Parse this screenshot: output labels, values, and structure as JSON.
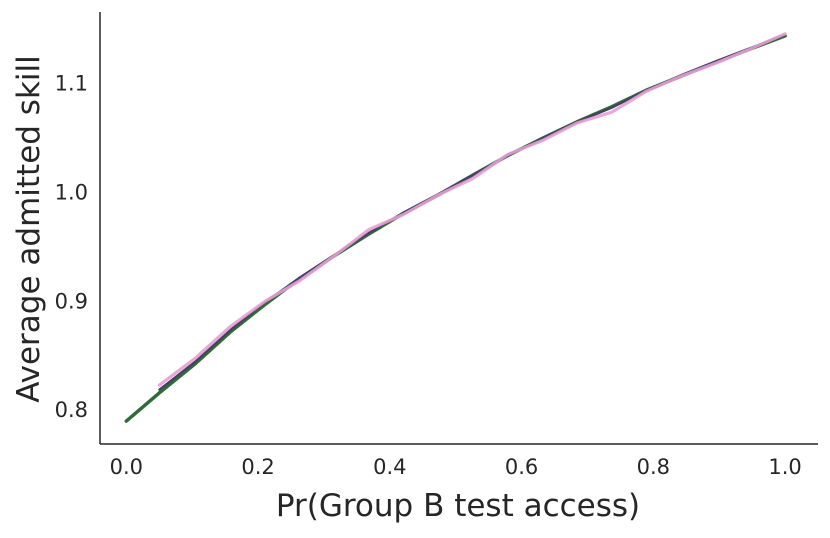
{
  "chart_data": {
    "type": "line",
    "title": "",
    "xlabel": "Pr(Group B test access)",
    "ylabel": "Average admitted skill",
    "xlim": [
      -0.04,
      1.05
    ],
    "ylim": [
      0.768,
      1.165
    ],
    "xticks": [
      0.0,
      0.2,
      0.4,
      0.6,
      0.8,
      1.0
    ],
    "xtick_labels": [
      "0.0",
      "0.2",
      "0.4",
      "0.6",
      "0.8",
      "1.0"
    ],
    "yticks": [
      0.8,
      0.9,
      1.0,
      1.1
    ],
    "ytick_labels": [
      "0.8",
      "0.9",
      "1.0",
      "1.1"
    ],
    "grid": false,
    "legend": "none",
    "series": [
      {
        "color": "#2e6b36",
        "x": [
          0.0,
          0.05,
          0.105,
          0.158,
          0.21,
          0.263,
          0.316,
          0.368,
          0.421,
          0.474,
          0.526,
          0.579,
          0.632,
          0.684,
          0.737,
          0.789,
          0.842,
          0.895,
          0.947,
          1.0
        ],
        "y": [
          0.789,
          0.815,
          0.842,
          0.871,
          0.896,
          0.92,
          0.941,
          0.961,
          0.98,
          0.997,
          1.015,
          1.033,
          1.049,
          1.064,
          1.078,
          1.093,
          1.106,
          1.119,
          1.131,
          1.143
        ]
      },
      {
        "color": "#4a3a6e",
        "x": [
          0.05,
          0.105,
          0.158,
          0.21,
          0.263,
          0.316,
          0.368,
          0.421,
          0.474,
          0.526,
          0.579,
          0.632,
          0.684,
          0.737,
          0.789,
          0.842,
          0.895,
          0.947,
          1.0
        ],
        "y": [
          0.818,
          0.844,
          0.873,
          0.898,
          0.921,
          0.942,
          0.962,
          0.981,
          0.998,
          1.015,
          1.033,
          1.049,
          1.064,
          1.077,
          1.093,
          1.107,
          1.12,
          1.132,
          1.144
        ]
      },
      {
        "color": "#e6a0d2",
        "x": [
          0.05,
          0.105,
          0.158,
          0.21,
          0.263,
          0.316,
          0.368,
          0.421,
          0.474,
          0.526,
          0.579,
          0.632,
          0.684,
          0.737,
          0.789,
          0.842,
          0.895,
          0.947,
          1.0
        ],
        "y": [
          0.822,
          0.847,
          0.876,
          0.899,
          0.918,
          0.941,
          0.965,
          0.979,
          0.997,
          1.012,
          1.034,
          1.047,
          1.063,
          1.073,
          1.092,
          1.106,
          1.118,
          1.131,
          1.145
        ]
      }
    ]
  }
}
